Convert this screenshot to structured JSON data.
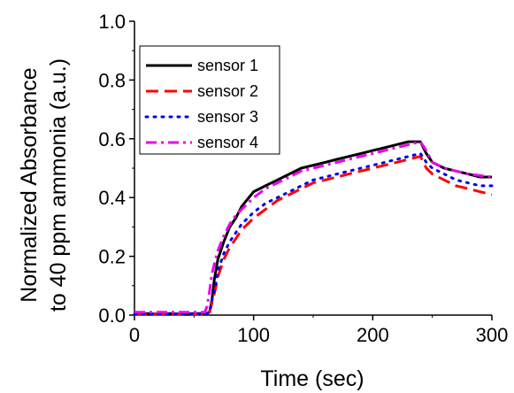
{
  "chart_data": {
    "type": "line",
    "title": "",
    "xlabel": "Time (sec)",
    "ylabel_lines": [
      "Normalized Absorbance",
      "to 40 ppm ammonia (a.u.)"
    ],
    "xlim": [
      0,
      300
    ],
    "ylim": [
      0,
      1.0
    ],
    "xticks": [
      0,
      100,
      200,
      300
    ],
    "xtick_labels": [
      "0",
      "100",
      "200",
      "300"
    ],
    "yticks": [
      0,
      0.2,
      0.4,
      0.6,
      0.8,
      1.0
    ],
    "ytick_labels": [
      "0.0",
      "0.2",
      "0.4",
      "0.6",
      "0.8",
      "1.0"
    ],
    "grid": false,
    "legend_position": "top-left",
    "series": [
      {
        "name": "sensor 1",
        "color": "#000000",
        "style": "solid",
        "x": [
          0,
          10,
          20,
          30,
          40,
          50,
          60,
          63,
          65,
          67,
          70,
          75,
          80,
          85,
          90,
          100,
          110,
          120,
          130,
          140,
          150,
          160,
          170,
          180,
          190,
          200,
          210,
          220,
          230,
          240,
          245,
          250,
          260,
          270,
          280,
          290,
          300
        ],
        "y": [
          0.005,
          0.005,
          0.004,
          0.005,
          0.004,
          0.005,
          0.005,
          0.01,
          0.05,
          0.12,
          0.19,
          0.25,
          0.3,
          0.33,
          0.37,
          0.42,
          0.44,
          0.46,
          0.48,
          0.5,
          0.51,
          0.52,
          0.53,
          0.54,
          0.55,
          0.56,
          0.57,
          0.58,
          0.59,
          0.59,
          0.55,
          0.52,
          0.5,
          0.49,
          0.48,
          0.47,
          0.47
        ]
      },
      {
        "name": "sensor 2",
        "color": "#ff0000",
        "style": "dashed",
        "x": [
          0,
          20,
          40,
          60,
          63,
          65,
          68,
          70,
          75,
          80,
          85,
          90,
          100,
          110,
          120,
          130,
          140,
          150,
          160,
          170,
          180,
          190,
          200,
          210,
          220,
          230,
          240,
          245,
          250,
          260,
          270,
          280,
          290,
          300
        ],
        "y": [
          0.003,
          0.003,
          0.003,
          0.003,
          0.01,
          0.04,
          0.09,
          0.13,
          0.19,
          0.23,
          0.26,
          0.29,
          0.33,
          0.36,
          0.39,
          0.41,
          0.43,
          0.45,
          0.46,
          0.47,
          0.48,
          0.49,
          0.5,
          0.51,
          0.52,
          0.53,
          0.54,
          0.5,
          0.48,
          0.46,
          0.44,
          0.43,
          0.42,
          0.41
        ]
      },
      {
        "name": "sensor 3",
        "color": "#0000ee",
        "style": "dotted",
        "x": [
          0,
          20,
          40,
          60,
          63,
          65,
          68,
          70,
          75,
          80,
          85,
          90,
          100,
          110,
          120,
          130,
          140,
          150,
          160,
          170,
          180,
          190,
          200,
          210,
          220,
          230,
          240,
          245,
          250,
          260,
          270,
          280,
          290,
          300
        ],
        "y": [
          0.004,
          0.004,
          0.004,
          0.004,
          0.01,
          0.05,
          0.1,
          0.15,
          0.21,
          0.25,
          0.28,
          0.31,
          0.35,
          0.38,
          0.4,
          0.42,
          0.44,
          0.46,
          0.47,
          0.48,
          0.49,
          0.5,
          0.51,
          0.52,
          0.53,
          0.54,
          0.55,
          0.52,
          0.5,
          0.48,
          0.46,
          0.45,
          0.44,
          0.44
        ]
      },
      {
        "name": "sensor 4",
        "color": "#ee00ee",
        "style": "dashdot",
        "x": [
          0,
          20,
          40,
          59,
          61,
          63,
          65,
          68,
          70,
          75,
          80,
          85,
          90,
          100,
          110,
          120,
          130,
          140,
          150,
          160,
          170,
          180,
          190,
          200,
          210,
          220,
          230,
          240,
          245,
          250,
          260,
          270,
          280,
          290,
          300
        ],
        "y": [
          0.01,
          0.01,
          0.01,
          0.01,
          0.03,
          0.08,
          0.14,
          0.19,
          0.22,
          0.27,
          0.31,
          0.34,
          0.36,
          0.4,
          0.43,
          0.45,
          0.47,
          0.49,
          0.5,
          0.51,
          0.52,
          0.53,
          0.54,
          0.55,
          0.56,
          0.57,
          0.58,
          0.59,
          0.56,
          0.52,
          0.5,
          0.49,
          0.48,
          0.475,
          0.47
        ]
      }
    ]
  }
}
